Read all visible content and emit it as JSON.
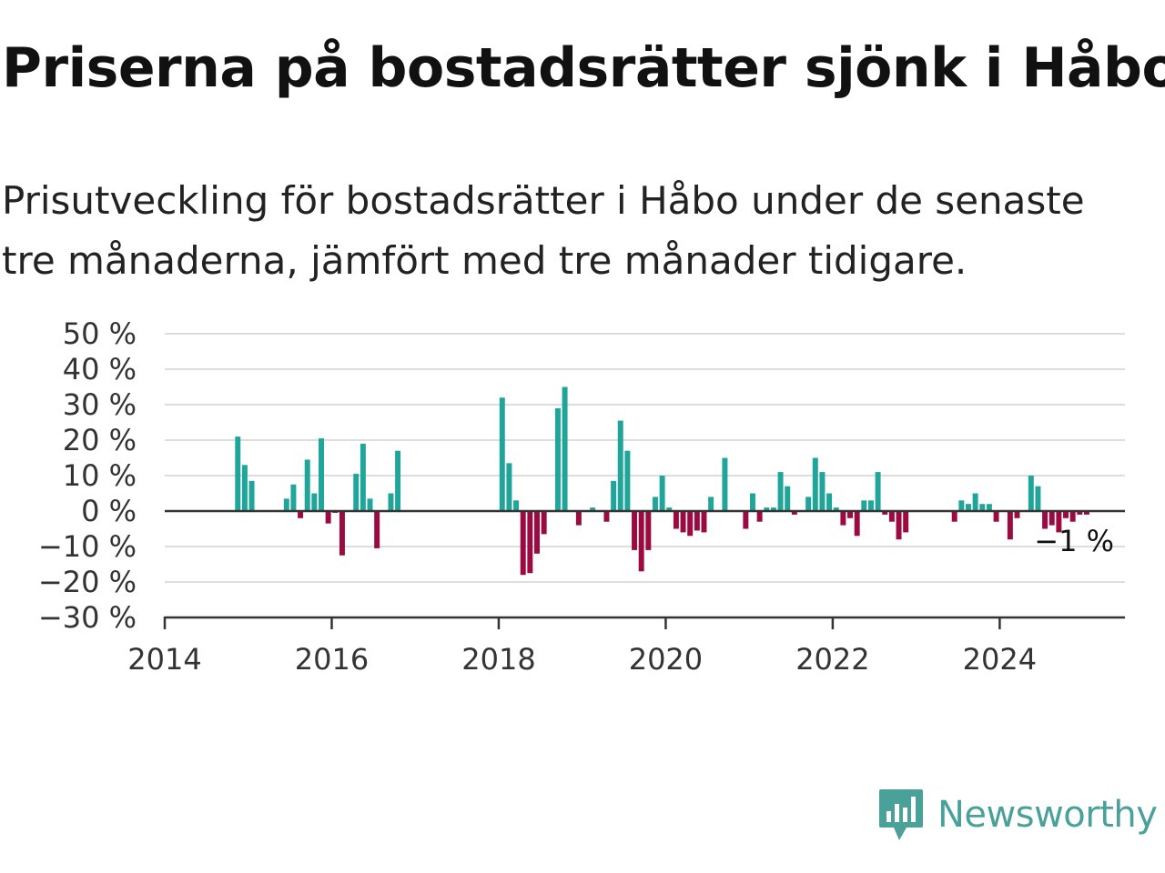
{
  "title": "Priserna på bostadsrätter sjönk i Håbo",
  "subtitle": "Prisutveckling för bostadsrätter i Håbo under de senaste tre månaderna, jämfört med tre månader tidigare.",
  "brand": {
    "name": "Newsworthy",
    "icon": "newsworthy-logo-icon",
    "color": "#4aa19a"
  },
  "chart_data": {
    "type": "bar",
    "x_unit": "month",
    "y_unit": "%",
    "ylim": [
      -30,
      50
    ],
    "yticks": [
      50,
      40,
      30,
      20,
      10,
      0,
      -10,
      -20,
      -30
    ],
    "ytick_labels": [
      "50 %",
      "40 %",
      "30 %",
      "20 %",
      "10 %",
      "0 %",
      "−10 %",
      "−20 %",
      "−30 %"
    ],
    "xticks": [
      "2014",
      "2016",
      "2018",
      "2020",
      "2022",
      "2024"
    ],
    "grid": true,
    "colors": {
      "positive": "#1fa59a",
      "negative": "#9b0a40"
    },
    "annotation": "−1 %",
    "points": [
      {
        "x": "2014-11",
        "y": 21
      },
      {
        "x": "2014-12",
        "y": 13
      },
      {
        "x": "2015-01",
        "y": 8.5
      },
      {
        "x": "2015-06",
        "y": 3.5
      },
      {
        "x": "2015-07",
        "y": 7.5
      },
      {
        "x": "2015-08",
        "y": -2
      },
      {
        "x": "2015-09",
        "y": 14.5
      },
      {
        "x": "2015-10",
        "y": 5
      },
      {
        "x": "2015-11",
        "y": 20.5
      },
      {
        "x": "2015-12",
        "y": -3.5
      },
      {
        "x": "2016-01",
        "y": -0.5
      },
      {
        "x": "2016-02",
        "y": -12.5
      },
      {
        "x": "2016-03",
        "y": 0
      },
      {
        "x": "2016-04",
        "y": 10.5
      },
      {
        "x": "2016-05",
        "y": 19
      },
      {
        "x": "2016-06",
        "y": 3.5
      },
      {
        "x": "2016-07",
        "y": -10.5
      },
      {
        "x": "2016-08",
        "y": 0
      },
      {
        "x": "2016-09",
        "y": 5
      },
      {
        "x": "2016-10",
        "y": 17
      },
      {
        "x": "2018-01",
        "y": 32
      },
      {
        "x": "2018-02",
        "y": 13.5
      },
      {
        "x": "2018-03",
        "y": 3
      },
      {
        "x": "2018-04",
        "y": -18
      },
      {
        "x": "2018-05",
        "y": -17.5
      },
      {
        "x": "2018-06",
        "y": -12
      },
      {
        "x": "2018-07",
        "y": -6.5
      },
      {
        "x": "2018-09",
        "y": 29
      },
      {
        "x": "2018-10",
        "y": 35
      },
      {
        "x": "2018-12",
        "y": -4
      },
      {
        "x": "2019-02",
        "y": 1
      },
      {
        "x": "2019-04",
        "y": -3
      },
      {
        "x": "2019-05",
        "y": 8.5
      },
      {
        "x": "2019-06",
        "y": 25.5
      },
      {
        "x": "2019-07",
        "y": 17
      },
      {
        "x": "2019-08",
        "y": -11
      },
      {
        "x": "2019-09",
        "y": -17
      },
      {
        "x": "2019-10",
        "y": -11
      },
      {
        "x": "2019-11",
        "y": 4
      },
      {
        "x": "2019-12",
        "y": 10
      },
      {
        "x": "2020-01",
        "y": 1
      },
      {
        "x": "2020-02",
        "y": -5
      },
      {
        "x": "2020-03",
        "y": -6
      },
      {
        "x": "2020-04",
        "y": -7
      },
      {
        "x": "2020-05",
        "y": -5.5
      },
      {
        "x": "2020-06",
        "y": -6
      },
      {
        "x": "2020-07",
        "y": 4
      },
      {
        "x": "2020-08",
        "y": 0
      },
      {
        "x": "2020-09",
        "y": 15
      },
      {
        "x": "2020-12",
        "y": -5
      },
      {
        "x": "2021-01",
        "y": 5
      },
      {
        "x": "2021-02",
        "y": -3
      },
      {
        "x": "2021-03",
        "y": 1
      },
      {
        "x": "2021-04",
        "y": 1
      },
      {
        "x": "2021-05",
        "y": 11
      },
      {
        "x": "2021-06",
        "y": 7
      },
      {
        "x": "2021-07",
        "y": -1
      },
      {
        "x": "2021-09",
        "y": 4
      },
      {
        "x": "2021-10",
        "y": 15
      },
      {
        "x": "2021-11",
        "y": 11
      },
      {
        "x": "2021-12",
        "y": 5
      },
      {
        "x": "2022-01",
        "y": 1
      },
      {
        "x": "2022-02",
        "y": -4
      },
      {
        "x": "2022-03",
        "y": -2
      },
      {
        "x": "2022-04",
        "y": -7
      },
      {
        "x": "2022-05",
        "y": 3
      },
      {
        "x": "2022-06",
        "y": 3
      },
      {
        "x": "2022-07",
        "y": 11
      },
      {
        "x": "2022-08",
        "y": -1
      },
      {
        "x": "2022-09",
        "y": -3
      },
      {
        "x": "2022-10",
        "y": -8
      },
      {
        "x": "2022-11",
        "y": -6
      },
      {
        "x": "2023-06",
        "y": -3
      },
      {
        "x": "2023-07",
        "y": 3
      },
      {
        "x": "2023-08",
        "y": 2
      },
      {
        "x": "2023-09",
        "y": 5
      },
      {
        "x": "2023-10",
        "y": 2
      },
      {
        "x": "2023-11",
        "y": 2
      },
      {
        "x": "2023-12",
        "y": -3
      },
      {
        "x": "2024-02",
        "y": -8
      },
      {
        "x": "2024-03",
        "y": -2
      },
      {
        "x": "2024-05",
        "y": 10
      },
      {
        "x": "2024-06",
        "y": 7
      },
      {
        "x": "2024-07",
        "y": -5
      },
      {
        "x": "2024-08",
        "y": -4
      },
      {
        "x": "2024-09",
        "y": -6
      },
      {
        "x": "2024-10",
        "y": -2
      },
      {
        "x": "2024-11",
        "y": -3
      },
      {
        "x": "2024-12",
        "y": -1
      },
      {
        "x": "2025-01",
        "y": -1
      }
    ]
  }
}
